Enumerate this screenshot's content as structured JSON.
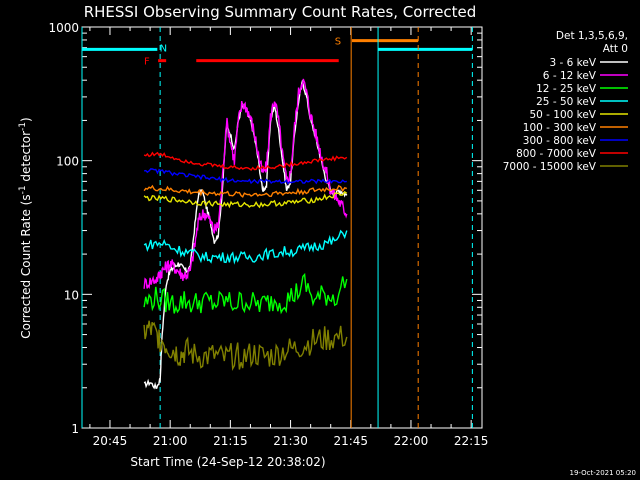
{
  "chart_data": {
    "type": "line",
    "title": "RHESSI Observing Summary Count Rates, Corrected",
    "xlabel": "Start Time (24-Sep-12 20:38:02)",
    "ylabel": "Corrected Count Rate (s",
    "ylabel_exp1": "-1",
    "ylabel_mid": " detector",
    "ylabel_exp2": "-1",
    "ylabel_end": ")",
    "y_scale": "log",
    "ylim": [
      1,
      1000
    ],
    "xlim_minutes": [
      38.03,
      137.7
    ],
    "x_ticks": [
      {
        "label": "20:45",
        "minute": 45
      },
      {
        "label": "21:00",
        "minute": 60
      },
      {
        "label": "21:15",
        "minute": 75
      },
      {
        "label": "21:30",
        "minute": 90
      },
      {
        "label": "21:45",
        "minute": 105
      },
      {
        "label": "22:00",
        "minute": 120
      },
      {
        "label": "22:15",
        "minute": 135
      }
    ],
    "y_ticks": [
      {
        "label": "1",
        "value": 1
      },
      {
        "label": "10",
        "value": 10
      },
      {
        "label": "100",
        "value": 100
      },
      {
        "label": "1000",
        "value": 1000
      }
    ],
    "legend_header": [
      "Det 1,3,5,6,9,",
      "Att 0"
    ],
    "legend_placement": "right",
    "footer_date": "19-Oct-2021 05:20",
    "series": [
      {
        "name": "3 - 6 keV",
        "color": "#ffffff",
        "x": [
          53.5,
          55,
          56.5,
          57.5,
          58,
          59,
          60,
          61,
          62,
          63,
          64,
          65,
          66,
          67,
          68,
          69,
          70,
          71,
          72,
          73,
          74,
          75,
          76,
          77,
          78,
          79,
          80,
          81,
          82,
          83,
          84,
          85,
          86,
          87,
          88,
          89,
          90,
          91,
          92,
          93,
          94,
          95,
          96,
          97,
          98,
          99,
          100,
          101,
          102,
          103,
          104
        ],
        "values": [
          2.1,
          2.2,
          2.0,
          2.3,
          5,
          12,
          15,
          16,
          17,
          16,
          15,
          16,
          30,
          55,
          60,
          45,
          35,
          25,
          28,
          60,
          180,
          160,
          120,
          200,
          260,
          240,
          200,
          150,
          100,
          60,
          65,
          200,
          260,
          170,
          100,
          60,
          70,
          160,
          280,
          390,
          300,
          200,
          160,
          120,
          90,
          70,
          60,
          55,
          60,
          58,
          55
        ]
      },
      {
        "name": "6 - 12 keV",
        "color": "#ff00ff",
        "x": [
          53.5,
          55,
          56.5,
          57.5,
          58,
          59,
          60,
          61,
          62,
          63,
          64,
          65,
          66,
          67,
          68,
          69,
          70,
          71,
          72,
          73,
          74,
          75,
          76,
          77,
          78,
          79,
          80,
          81,
          82,
          83,
          84,
          85,
          86,
          87,
          88,
          89,
          90,
          91,
          92,
          93,
          94,
          95,
          96,
          97,
          98,
          99,
          100,
          101,
          102,
          103,
          104
        ],
        "values": [
          12,
          12.5,
          13,
          14,
          15,
          16,
          17,
          16,
          15,
          14,
          14,
          15,
          22,
          35,
          40,
          40,
          35,
          30,
          33,
          70,
          200,
          140,
          100,
          200,
          270,
          250,
          210,
          160,
          110,
          80,
          90,
          210,
          290,
          200,
          110,
          70,
          80,
          180,
          320,
          410,
          320,
          220,
          170,
          130,
          100,
          80,
          60,
          55,
          50,
          45,
          40
        ]
      },
      {
        "name": "12 - 25 keV",
        "color": "#00ff00",
        "x": [
          53.5,
          56,
          58.5,
          61,
          63.5,
          66,
          68.5,
          71,
          73.5,
          76,
          78.5,
          81,
          83.5,
          86,
          88.5,
          91,
          93.5,
          96,
          98.5,
          101,
          104
        ],
        "values": [
          8.5,
          9.5,
          9,
          8.5,
          9,
          8.5,
          9,
          8.5,
          9,
          8.5,
          9,
          8.5,
          8.5,
          9,
          9,
          10,
          12,
          9,
          10,
          9.5,
          13
        ]
      },
      {
        "name": "25 - 50 keV",
        "color": "#00ffff",
        "x": [
          53.5,
          56,
          58.5,
          61,
          63.5,
          66,
          68.5,
          71,
          73.5,
          76,
          78.5,
          81,
          83.5,
          86,
          88.5,
          91,
          93.5,
          96,
          98.5,
          101,
          104
        ],
        "values": [
          23,
          24,
          24,
          22,
          21,
          20,
          19,
          19,
          19,
          19,
          19,
          19,
          20,
          20,
          21,
          21,
          22,
          23,
          24,
          25,
          30
        ]
      },
      {
        "name": "50 - 100 keV",
        "color": "#e5e600",
        "x": [
          53.5,
          56,
          58.5,
          61,
          63.5,
          66,
          68.5,
          71,
          73.5,
          76,
          78.5,
          81,
          83.5,
          86,
          88.5,
          91,
          93.5,
          96,
          98.5,
          101,
          104
        ],
        "values": [
          53,
          52,
          52,
          51,
          50,
          49,
          48,
          48,
          47,
          47,
          47,
          47,
          47,
          48,
          48,
          49,
          50,
          51,
          53,
          55,
          57
        ]
      },
      {
        "name": "100 - 300 keV",
        "color": "#ff8000",
        "x": [
          53.5,
          56,
          58.5,
          61,
          63.5,
          66,
          68.5,
          71,
          73.5,
          76,
          78.5,
          81,
          83.5,
          86,
          88.5,
          91,
          93.5,
          96,
          98.5,
          101,
          104
        ],
        "values": [
          62,
          62,
          61,
          60,
          59,
          58,
          58,
          57,
          57,
          56,
          56,
          56,
          56,
          57,
          57,
          58,
          59,
          60,
          61,
          62,
          62
        ]
      },
      {
        "name": "300 - 800 keV",
        "color": "#0000ff",
        "x": [
          53.5,
          56,
          58.5,
          61,
          63.5,
          66,
          68.5,
          71,
          73.5,
          76,
          78.5,
          81,
          83.5,
          86,
          88.5,
          91,
          93.5,
          96,
          98.5,
          101,
          104
        ],
        "values": [
          85,
          84,
          83,
          80,
          78,
          76,
          75,
          73,
          72,
          71,
          70,
          70,
          70,
          70,
          70,
          70,
          70,
          70,
          70,
          70,
          70
        ]
      },
      {
        "name": "800 - 7000 keV",
        "color": "#ff0000",
        "x": [
          53.5,
          56,
          58.5,
          61,
          63.5,
          66,
          68.5,
          71,
          73.5,
          76,
          78.5,
          81,
          83.5,
          86,
          88.5,
          91,
          93.5,
          96,
          98.5,
          101,
          104
        ],
        "values": [
          110,
          112,
          110,
          105,
          100,
          97,
          94,
          92,
          90,
          89,
          88,
          88,
          89,
          90,
          92,
          95,
          97,
          100,
          102,
          104,
          106
        ]
      },
      {
        "name": "7000 - 15000 keV",
        "color": "#808000",
        "x": [
          53.5,
          55,
          56.5,
          58,
          59.5,
          61,
          62.5,
          64,
          66,
          68.5,
          71,
          73.5,
          76,
          78.5,
          81,
          83.5,
          86,
          88.5,
          91,
          93.5,
          96,
          98.5,
          101,
          104
        ],
        "values": [
          5.2,
          5.5,
          5,
          4.5,
          4,
          3.8,
          3.5,
          3.8,
          3.5,
          3.4,
          3.5,
          3.3,
          3.5,
          3.4,
          3.6,
          3.4,
          3.5,
          3.8,
          3.9,
          4.2,
          4.5,
          4.6,
          4.7,
          4.8
        ]
      }
    ],
    "annotations": [
      {
        "type": "segment",
        "label": "",
        "color": "#00ffff",
        "x": [
          38.03,
          56.8
        ],
        "y": 680
      },
      {
        "type": "segment",
        "label": "",
        "color": "#00ffff",
        "x": [
          111.8,
          135.3
        ],
        "y": 680
      },
      {
        "type": "label",
        "label": "N",
        "color": "#00ffff",
        "x": 58.3,
        "y": 700
      },
      {
        "type": "label",
        "label": "F",
        "color": "#ff0000",
        "x": 54.2,
        "y": 560
      },
      {
        "type": "segment",
        "label": "",
        "color": "#ff0000",
        "x": [
          57.0,
          59.0
        ],
        "y": 560
      },
      {
        "type": "segment",
        "label": "",
        "color": "#ff0000",
        "x": [
          66.5,
          102.0
        ],
        "y": 560
      },
      {
        "type": "label",
        "label": "S",
        "color": "#ff8000",
        "x": 101.8,
        "y": 790
      },
      {
        "type": "segment",
        "label": "",
        "color": "#ff8000",
        "x": [
          105.3,
          121.8
        ],
        "y": 790
      },
      {
        "type": "vline",
        "label": "",
        "color": "#00ffff",
        "style": "solid",
        "x": 38.03
      },
      {
        "type": "vline",
        "label": "",
        "color": "#00ffff",
        "style": "dashed",
        "x": 57.5
      },
      {
        "type": "vline",
        "label": "",
        "color": "#ff8000",
        "style": "solid",
        "x": 105.1
      },
      {
        "type": "vline",
        "label": "",
        "color": "#00ffff",
        "style": "solid",
        "x": 111.8
      },
      {
        "type": "vline",
        "label": "",
        "color": "#ff8000",
        "style": "dashed",
        "x": 121.8
      },
      {
        "type": "vline",
        "label": "",
        "color": "#00ffff",
        "style": "dashed",
        "x": 135.3
      }
    ]
  }
}
